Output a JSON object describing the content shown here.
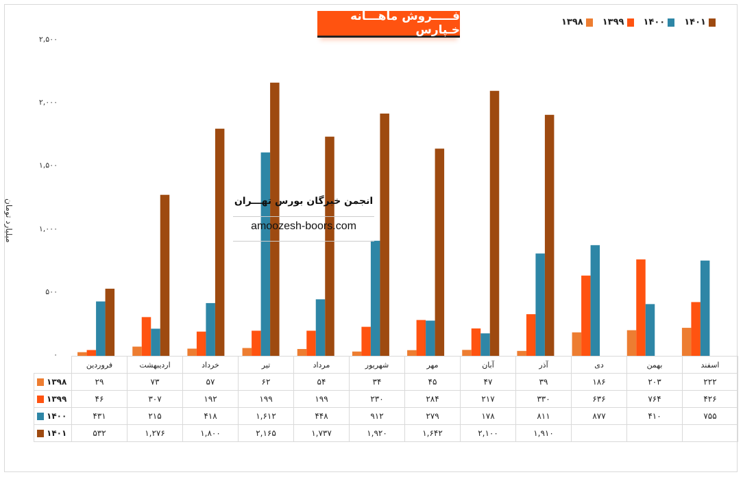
{
  "title": "فـــــروش ماهـــانه خـپارس",
  "watermark": {
    "org": "انجمن خبرگان بورس تهـــران",
    "site": "amoozesh-boors.com"
  },
  "colors": {
    "1398": "#ED7D31",
    "1399": "#FF5310",
    "1400": "#2E86A6",
    "1401": "#9E4A10"
  },
  "chart_data": {
    "type": "bar",
    "title": "فـــــروش ماهـــانه خـپارس",
    "ylabel": "میلیارد تومان",
    "xlabel": "",
    "ylim": [
      0,
      2500
    ],
    "yticks": [
      0,
      500,
      1000,
      1500,
      2000,
      2500
    ],
    "ytick_labels": [
      "۰",
      "۵۰۰",
      "۱,۰۰۰",
      "۱,۵۰۰",
      "۲,۰۰۰",
      "۲,۵۰۰"
    ],
    "legend_position": "top-right",
    "categories": [
      "فروردین",
      "اردیبهشت",
      "خرداد",
      "تیر",
      "مرداد",
      "شهریور",
      "مهر",
      "آبان",
      "آذر",
      "دی",
      "بهمن",
      "اسفند"
    ],
    "series": [
      {
        "name": "۱۳۹۸",
        "key": "1398",
        "values": [
          29,
          73,
          57,
          62,
          54,
          34,
          45,
          47,
          39,
          186,
          203,
          222
        ],
        "labels": [
          "۲۹",
          "۷۳",
          "۵۷",
          "۶۲",
          "۵۴",
          "۳۴",
          "۴۵",
          "۴۷",
          "۳۹",
          "۱۸۶",
          "۲۰۳",
          "۲۲۲"
        ]
      },
      {
        "name": "۱۳۹۹",
        "key": "1399",
        "values": [
          46,
          307,
          192,
          199,
          199,
          230,
          284,
          217,
          330,
          636,
          764,
          426
        ],
        "labels": [
          "۴۶",
          "۳۰۷",
          "۱۹۲",
          "۱۹۹",
          "۱۹۹",
          "۲۳۰",
          "۲۸۴",
          "۲۱۷",
          "۳۳۰",
          "۶۳۶",
          "۷۶۴",
          "۴۲۶"
        ]
      },
      {
        "name": "۱۴۰۰",
        "key": "1400",
        "values": [
          431,
          215,
          418,
          1612,
          448,
          912,
          279,
          178,
          811,
          877,
          410,
          755
        ],
        "labels": [
          "۴۳۱",
          "۲۱۵",
          "۴۱۸",
          "۱,۶۱۲",
          "۴۴۸",
          "۹۱۲",
          "۲۷۹",
          "۱۷۸",
          "۸۱۱",
          "۸۷۷",
          "۴۱۰",
          "۷۵۵"
        ]
      },
      {
        "name": "۱۴۰۱",
        "key": "1401",
        "values": [
          532,
          1276,
          1800,
          2165,
          1737,
          1920,
          1642,
          2100,
          1910,
          null,
          null,
          null
        ],
        "labels": [
          "۵۳۲",
          "۱,۲۷۶",
          "۱,۸۰۰",
          "۲,۱۶۵",
          "۱,۷۳۷",
          "۱,۹۲۰",
          "۱,۶۴۲",
          "۲,۱۰۰",
          "۱,۹۱۰",
          "",
          "",
          ""
        ]
      }
    ]
  }
}
